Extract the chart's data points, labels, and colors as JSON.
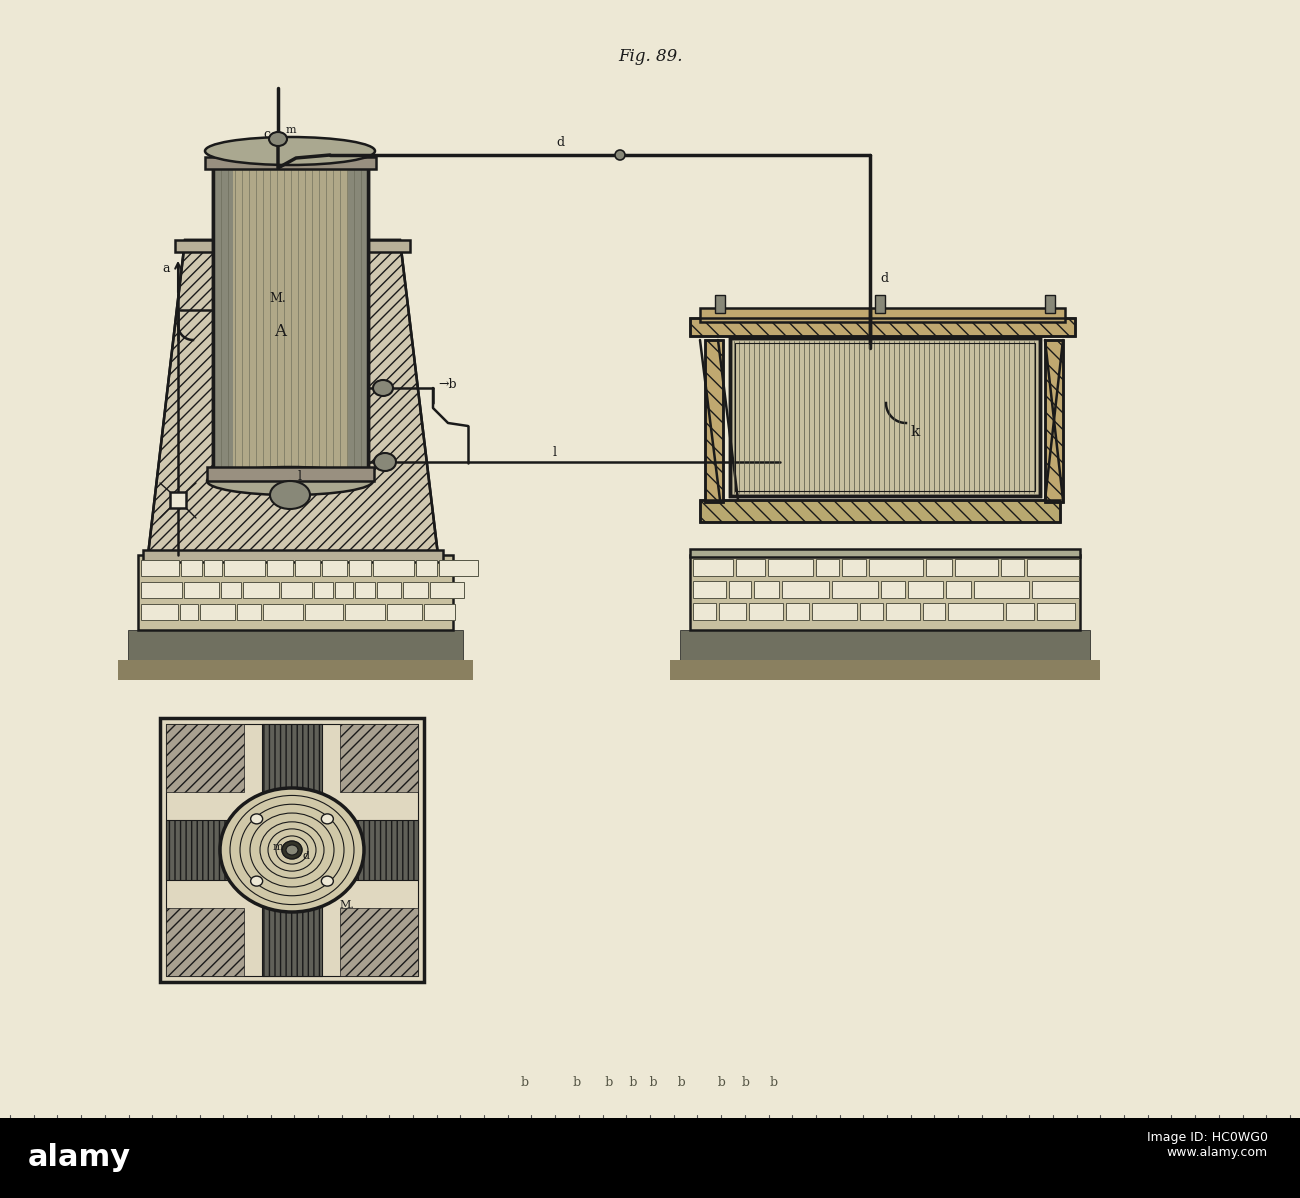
{
  "bg_color": "#ede8d5",
  "line_color": "#1a1a1a",
  "label_color": "#1a1a1a",
  "fig_title": "Fig. 89.",
  "alamy_bar_color": "#000000",
  "watermark_text_left": "alamy",
  "watermark_text_right": "Image ID: HC0WG0\nwww.alamy.com",
  "hatch_color": "#404040",
  "stone_fill": "#d8d0b8",
  "dark_fill": "#555550",
  "mid_fill": "#888878",
  "light_fill": "#c8c0a0"
}
